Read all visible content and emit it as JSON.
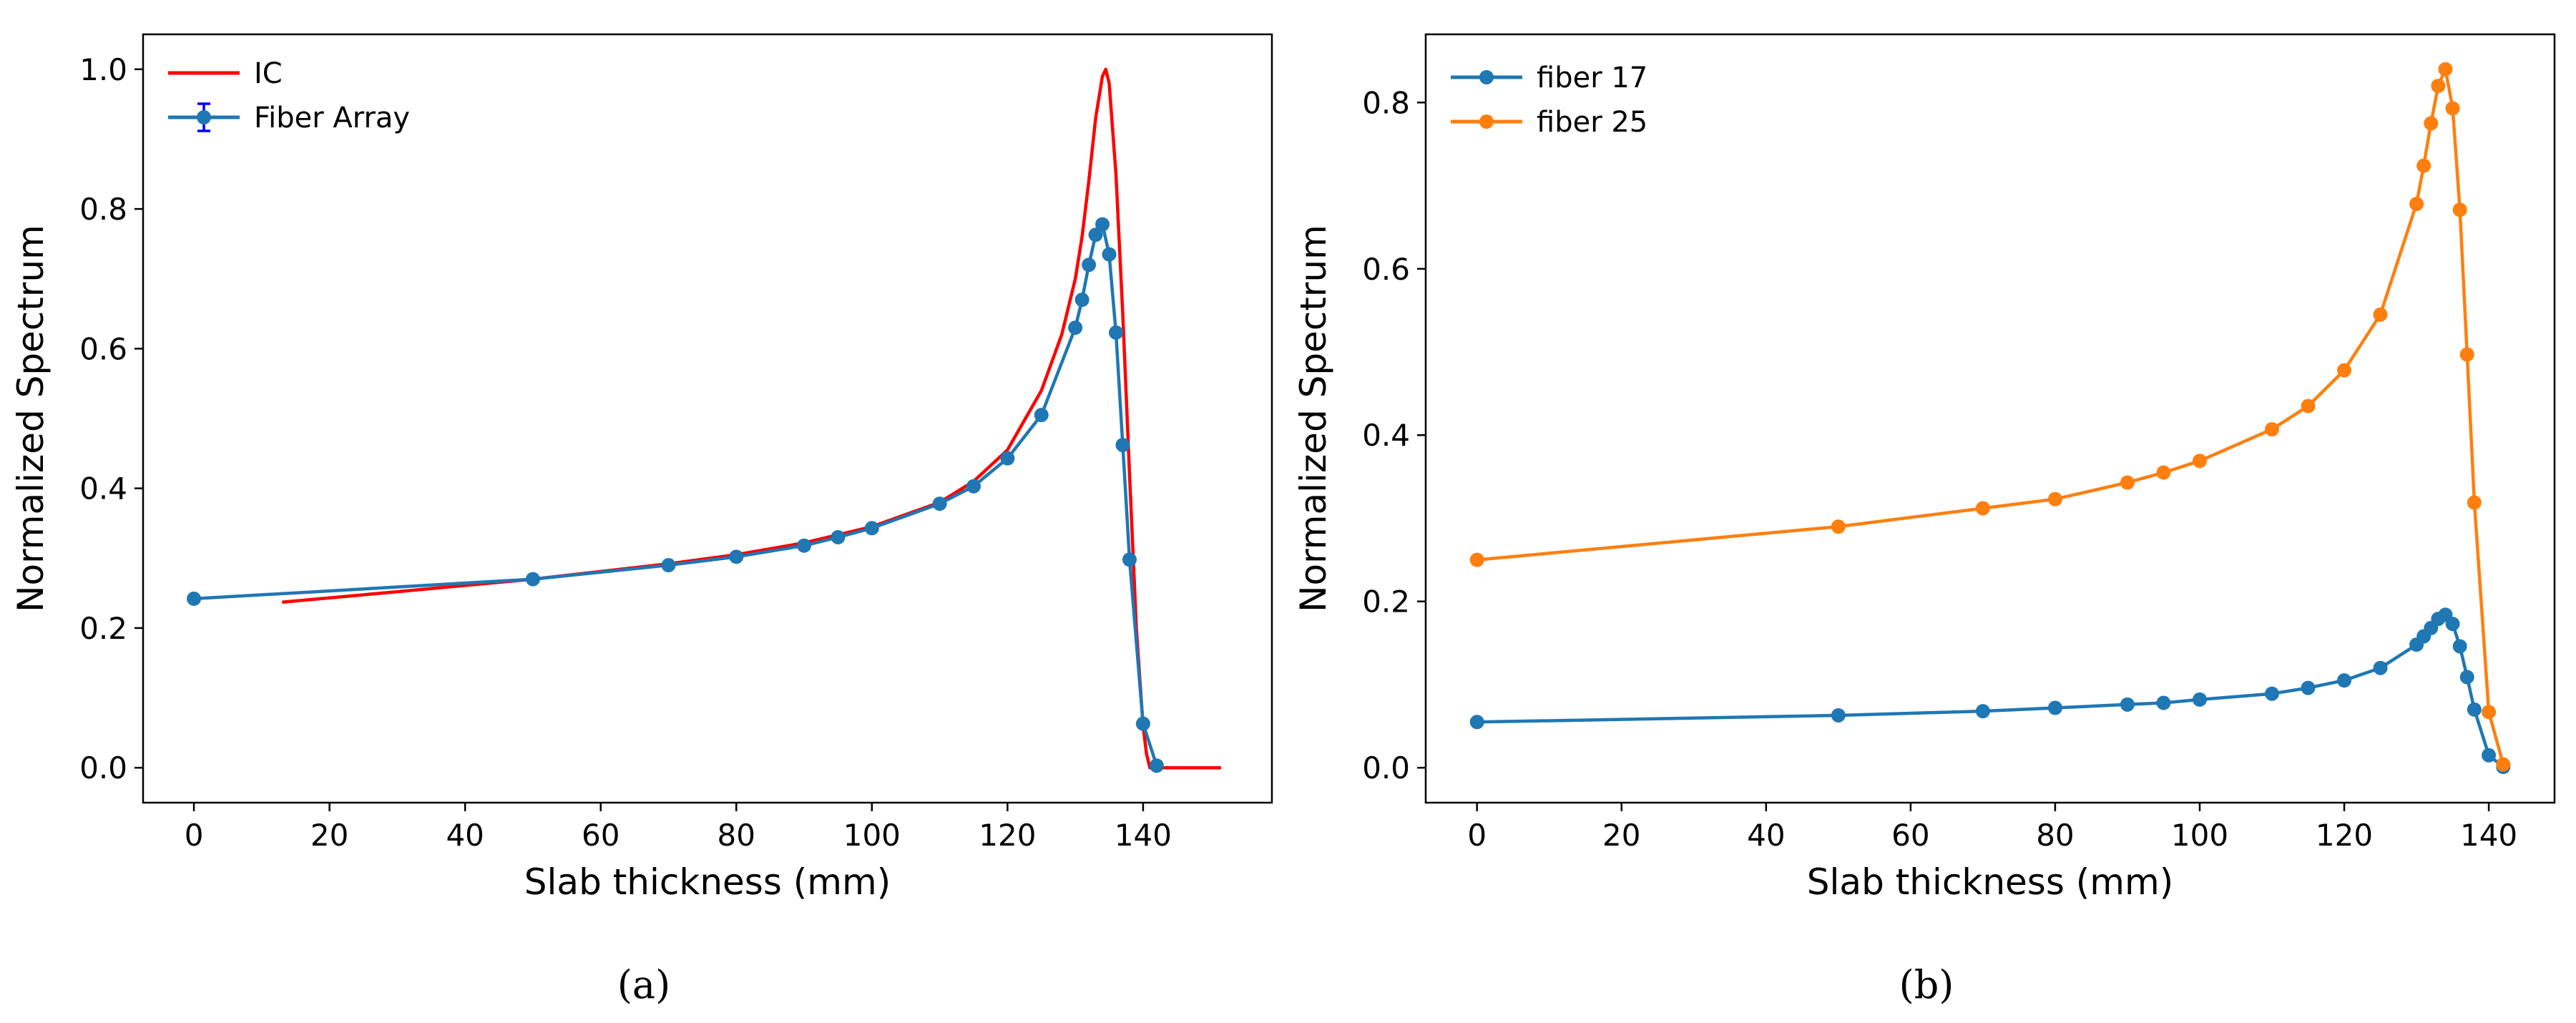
{
  "chart_data": [
    {
      "id": "a",
      "type": "line",
      "caption": "(a)",
      "xlabel": "Slab thickness (mm)",
      "ylabel": "Normalized Spectrum",
      "xlim": [
        -7.5,
        159
      ],
      "ylim": [
        -0.05,
        1.05
      ],
      "xticks": [
        0,
        20,
        40,
        60,
        80,
        100,
        120,
        140
      ],
      "yticks": [
        0.0,
        0.2,
        0.4,
        0.6,
        0.8,
        1.0
      ],
      "legend": {
        "position": "top-left",
        "entries": [
          "IC",
          "Fiber Array"
        ]
      },
      "series": [
        {
          "name": "IC",
          "color": "#ff0000",
          "marker": false,
          "x": [
            13,
            30,
            50,
            70,
            80,
            90,
            100,
            110,
            115,
            120,
            125,
            128,
            130,
            131,
            132,
            133,
            134,
            134.5,
            135,
            136,
            137,
            138,
            139,
            140,
            140.5,
            141,
            142,
            145,
            151.5
          ],
          "y": [
            0.237,
            0.252,
            0.27,
            0.292,
            0.305,
            0.322,
            0.345,
            0.38,
            0.41,
            0.455,
            0.54,
            0.62,
            0.7,
            0.76,
            0.84,
            0.93,
            0.99,
            1.0,
            0.98,
            0.85,
            0.65,
            0.42,
            0.2,
            0.06,
            0.02,
            0.0,
            0.0,
            0.0,
            0.0
          ]
        },
        {
          "name": "Fiber Array",
          "color": "#1f77b4",
          "marker": true,
          "x": [
            0,
            50,
            70,
            80,
            90,
            95,
            100,
            110,
            115,
            120,
            125,
            130,
            131,
            132,
            133,
            134,
            135,
            136,
            137,
            138,
            140,
            142
          ],
          "y": [
            0.242,
            0.27,
            0.29,
            0.302,
            0.318,
            0.33,
            0.343,
            0.378,
            0.403,
            0.443,
            0.505,
            0.63,
            0.67,
            0.72,
            0.763,
            0.778,
            0.735,
            0.623,
            0.462,
            0.298,
            0.063,
            0.003
          ]
        }
      ]
    },
    {
      "id": "b",
      "type": "line",
      "caption": "(b)",
      "xlabel": "Slab thickness (mm)",
      "ylabel": "Normalized Spectrum",
      "xlim": [
        -7.1,
        149.1
      ],
      "ylim": [
        -0.042,
        0.882
      ],
      "xticks": [
        0,
        20,
        40,
        60,
        80,
        100,
        120,
        140
      ],
      "yticks": [
        0.0,
        0.2,
        0.4,
        0.6,
        0.8
      ],
      "legend": {
        "position": "top-left",
        "entries": [
          "fiber 17",
          "fiber 25"
        ]
      },
      "series": [
        {
          "name": "fiber 17",
          "color": "#1f77b4",
          "marker": true,
          "x": [
            0,
            50,
            70,
            80,
            90,
            95,
            100,
            110,
            115,
            120,
            125,
            130,
            131,
            132,
            133,
            134,
            135,
            136,
            137,
            138,
            140,
            142
          ],
          "y": [
            0.055,
            0.063,
            0.068,
            0.072,
            0.076,
            0.078,
            0.082,
            0.089,
            0.096,
            0.105,
            0.12,
            0.148,
            0.158,
            0.168,
            0.179,
            0.184,
            0.173,
            0.146,
            0.109,
            0.07,
            0.015,
            0.001
          ]
        },
        {
          "name": "fiber 25",
          "color": "#ff7f0e",
          "marker": true,
          "x": [
            0,
            50,
            70,
            80,
            90,
            95,
            100,
            110,
            115,
            120,
            125,
            130,
            131,
            132,
            133,
            134,
            135,
            136,
            137,
            138,
            140,
            142
          ],
          "y": [
            0.25,
            0.29,
            0.312,
            0.323,
            0.343,
            0.355,
            0.369,
            0.407,
            0.435,
            0.478,
            0.545,
            0.678,
            0.724,
            0.775,
            0.82,
            0.84,
            0.793,
            0.671,
            0.497,
            0.319,
            0.067,
            0.004
          ]
        }
      ]
    }
  ]
}
